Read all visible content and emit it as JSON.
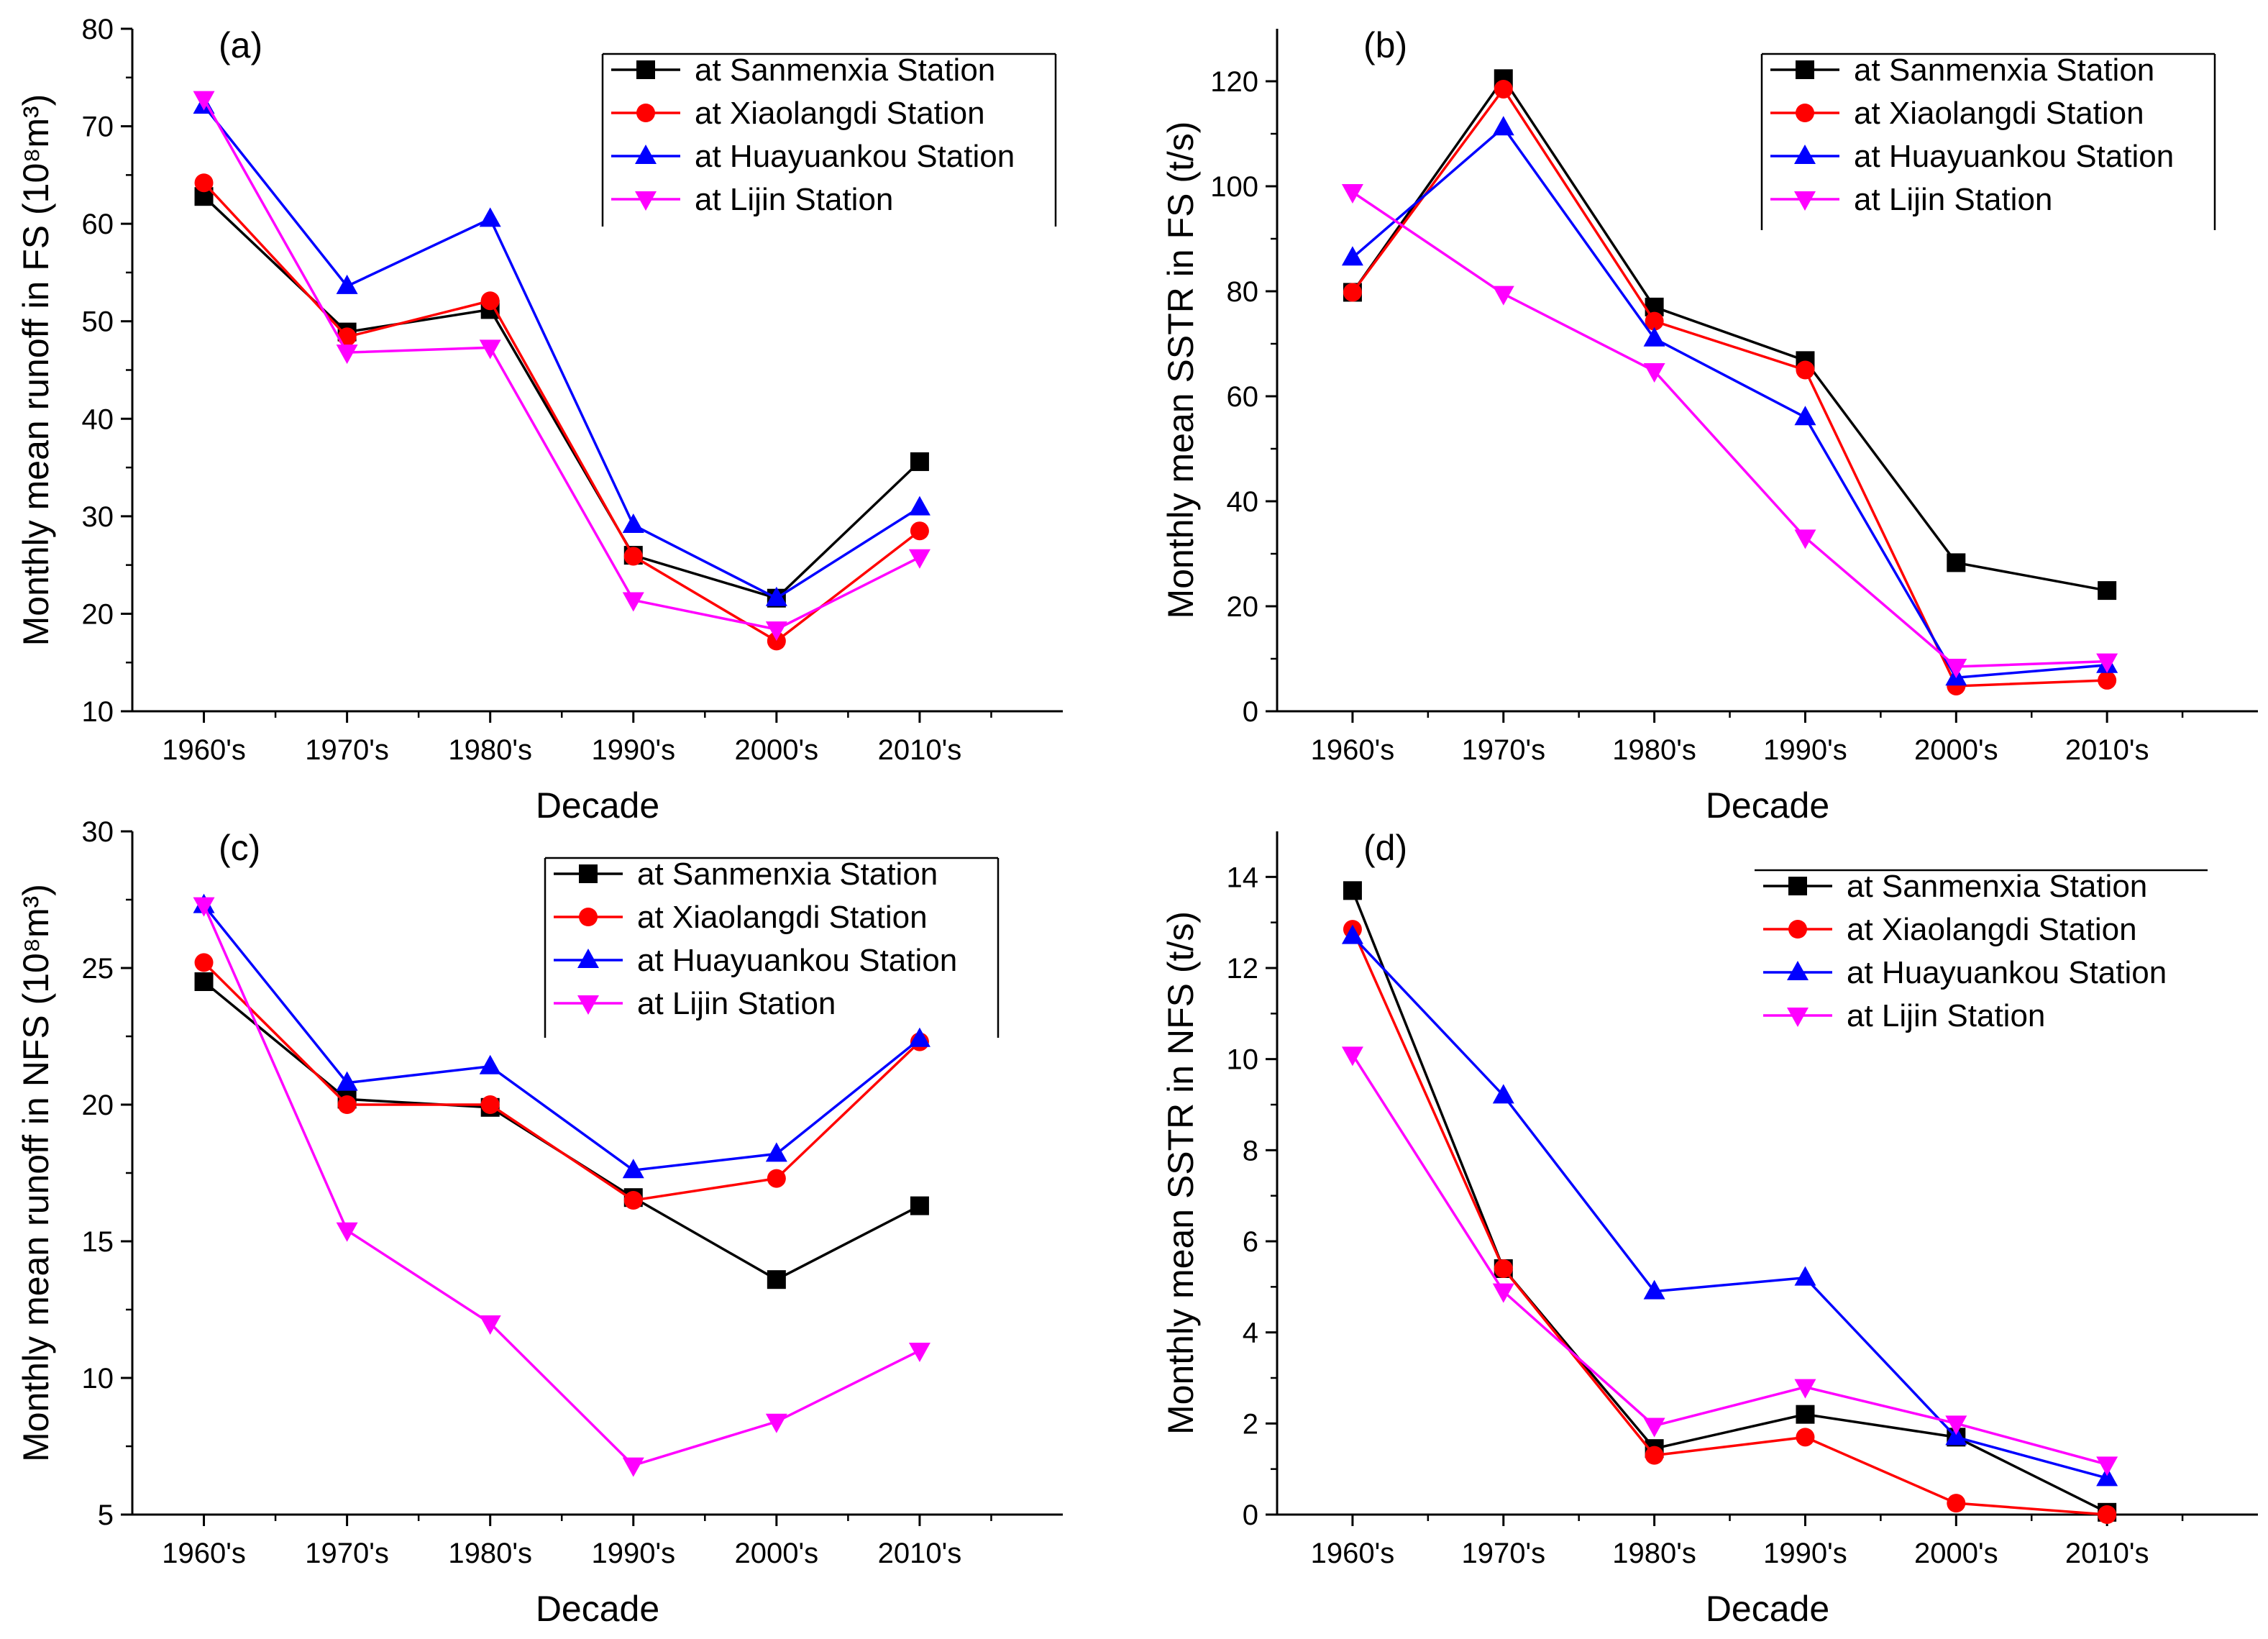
{
  "colors": {
    "sanmenxia": "#000000",
    "xiaolangdi": "#ff0000",
    "huayuankou": "#0000ff",
    "lijin": "#ff00ff"
  },
  "chart_data": [
    {
      "panel_label": "(a)",
      "type": "line",
      "xlabel": "Decade",
      "ylabel": "Monthly mean runoff in FS (10⁸m³)",
      "categories": [
        "1960's",
        "1970's",
        "1980's",
        "1990's",
        "2000's",
        "2010's"
      ],
      "ylim": [
        10,
        80
      ],
      "yticks": [
        10,
        20,
        30,
        40,
        50,
        60,
        70,
        80
      ],
      "legend_position": "top-right",
      "series": [
        {
          "name": "at Sanmenxia Station",
          "color": "#000000",
          "marker": "square",
          "values": [
            62.8,
            48.9,
            51.2,
            26.0,
            21.6,
            35.6
          ]
        },
        {
          "name": "at Xiaolangdi Station",
          "color": "#ff0000",
          "marker": "circle",
          "values": [
            64.2,
            48.4,
            52.1,
            25.9,
            17.2,
            28.5
          ]
        },
        {
          "name": "at Huayuankou Station",
          "color": "#0000ff",
          "marker": "triangle-up",
          "values": [
            72.1,
            53.6,
            60.5,
            29.1,
            21.6,
            30.9
          ]
        },
        {
          "name": "at Lijin Station",
          "color": "#ff00ff",
          "marker": "triangle-down",
          "values": [
            72.8,
            46.8,
            47.3,
            21.4,
            18.4,
            25.8
          ]
        }
      ]
    },
    {
      "panel_label": "(b)",
      "type": "line",
      "xlabel": "Decade",
      "ylabel": "Monthly mean SSTR in FS (t/s)",
      "categories": [
        "1960's",
        "1970's",
        "1980's",
        "1990's",
        "2000's",
        "2010's"
      ],
      "ylim": [
        0,
        130
      ],
      "yticks": [
        0,
        20,
        40,
        60,
        80,
        100,
        120
      ],
      "legend_position": "top-right",
      "series": [
        {
          "name": "at Sanmenxia Station",
          "color": "#000000",
          "marker": "square",
          "values": [
            79.8,
            120.5,
            77.0,
            66.8,
            28.3,
            23.0
          ]
        },
        {
          "name": "at Xiaolangdi Station",
          "color": "#ff0000",
          "marker": "circle",
          "values": [
            79.8,
            118.5,
            74.3,
            65.0,
            4.8,
            5.9
          ]
        },
        {
          "name": "at Huayuankou Station",
          "color": "#0000ff",
          "marker": "triangle-up",
          "values": [
            86.4,
            111.2,
            71.0,
            56.0,
            6.4,
            8.8
          ]
        },
        {
          "name": "at Lijin Station",
          "color": "#ff00ff",
          "marker": "triangle-down",
          "values": [
            98.9,
            79.5,
            64.8,
            33.1,
            8.5,
            9.5
          ]
        }
      ]
    },
    {
      "panel_label": "(c)",
      "type": "line",
      "xlabel": "Decade",
      "ylabel": "Monthly mean runoff in NFS (10⁸m³)",
      "categories": [
        "1960's",
        "1970's",
        "1980's",
        "1990's",
        "2000's",
        "2010's"
      ],
      "ylim": [
        5,
        30
      ],
      "yticks": [
        5,
        10,
        15,
        20,
        25,
        30
      ],
      "legend_position": "top-right",
      "series": [
        {
          "name": "at Sanmenxia Station",
          "color": "#000000",
          "marker": "square",
          "values": [
            24.5,
            20.2,
            19.9,
            16.6,
            13.6,
            16.3
          ]
        },
        {
          "name": "at Xiaolangdi Station",
          "color": "#ff0000",
          "marker": "circle",
          "values": [
            25.2,
            20.0,
            20.0,
            16.5,
            17.3,
            22.3
          ]
        },
        {
          "name": "at Huayuankou Station",
          "color": "#0000ff",
          "marker": "triangle-up",
          "values": [
            27.3,
            20.8,
            21.4,
            17.6,
            18.2,
            22.4
          ]
        },
        {
          "name": "at Lijin Station",
          "color": "#ff00ff",
          "marker": "triangle-down",
          "values": [
            27.3,
            15.4,
            12.0,
            6.8,
            8.4,
            11.0
          ]
        }
      ]
    },
    {
      "panel_label": "(d)",
      "type": "line",
      "xlabel": "Decade",
      "ylabel": "Monthly mean SSTR in NFS (t/s)",
      "categories": [
        "1960's",
        "1970's",
        "1980's",
        "1990's",
        "2000's",
        "2010's"
      ],
      "ylim": [
        0,
        15
      ],
      "yticks": [
        0,
        2,
        4,
        6,
        8,
        10,
        12,
        14
      ],
      "legend_position": "top-right",
      "series": [
        {
          "name": "at Sanmenxia Station",
          "color": "#000000",
          "marker": "square",
          "values": [
            13.7,
            5.4,
            1.45,
            2.2,
            1.7,
            0.05
          ]
        },
        {
          "name": "at Xiaolangdi Station",
          "color": "#ff0000",
          "marker": "circle",
          "values": [
            12.85,
            5.4,
            1.3,
            1.7,
            0.25,
            0.0
          ]
        },
        {
          "name": "at Huayuankou Station",
          "color": "#0000ff",
          "marker": "triangle-up",
          "values": [
            12.7,
            9.2,
            4.9,
            5.2,
            1.7,
            0.8
          ]
        },
        {
          "name": "at Lijin Station",
          "color": "#ff00ff",
          "marker": "triangle-down",
          "values": [
            10.1,
            4.9,
            1.95,
            2.8,
            2.0,
            1.1
          ]
        }
      ]
    }
  ]
}
